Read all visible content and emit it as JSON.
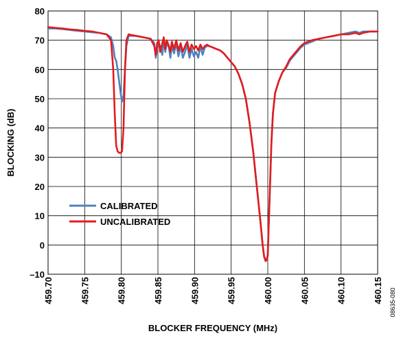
{
  "chart_data": {
    "type": "line",
    "title": "",
    "xlabel": "BLOCKER FREQUENCY (MHz)",
    "ylabel": "BLOCKING (dB)",
    "xlim": [
      459.7,
      460.15
    ],
    "ylim": [
      -10,
      80
    ],
    "x_ticks": [
      459.7,
      459.75,
      459.8,
      459.85,
      459.9,
      459.95,
      460.0,
      460.05,
      460.1,
      460.15
    ],
    "x_tick_labels": [
      "459.70",
      "459.75",
      "459.80",
      "459.85",
      "459.90",
      "459.95",
      "460.00",
      "460.05",
      "460.10",
      "460.15"
    ],
    "y_ticks": [
      -10,
      0,
      10,
      20,
      30,
      40,
      50,
      60,
      70,
      80
    ],
    "y_tick_labels": [
      "–10",
      "0",
      "10",
      "20",
      "30",
      "40",
      "50",
      "60",
      "70",
      "80"
    ],
    "grid": true,
    "legend_position": "lower-left",
    "figure_id": "08635-080",
    "series": [
      {
        "name": "CALIBRATED",
        "color": "#4f81bd",
        "x": [
          459.7,
          459.71,
          459.72,
          459.73,
          459.74,
          459.75,
          459.76,
          459.77,
          459.78,
          459.786,
          459.789,
          459.791,
          459.793,
          459.795,
          459.797,
          459.799,
          459.801,
          459.803,
          459.805,
          459.807,
          459.81,
          459.82,
          459.83,
          459.84,
          459.845,
          459.847,
          459.849,
          459.851,
          459.853,
          459.856,
          459.858,
          459.86,
          459.862,
          459.865,
          459.867,
          459.869,
          459.872,
          459.875,
          459.878,
          459.881,
          459.884,
          459.887,
          459.89,
          459.893,
          459.896,
          459.899,
          459.902,
          459.905,
          459.908,
          459.911,
          459.914,
          459.917,
          459.92,
          459.925,
          459.93,
          459.935,
          459.94,
          459.945,
          459.95,
          459.955,
          459.96,
          459.965,
          459.97,
          459.975,
          459.98,
          459.985,
          459.99,
          459.993,
          459.995,
          459.997,
          459.999,
          460.0,
          460.001,
          460.003,
          460.005,
          460.007,
          460.01,
          460.015,
          460.02,
          460.025,
          460.03,
          460.035,
          460.04,
          460.045,
          460.05,
          460.06,
          460.07,
          460.08,
          460.09,
          460.1,
          460.11,
          460.12,
          460.125,
          460.13,
          460.14,
          460.15
        ],
        "values": [
          74,
          74,
          73.8,
          73.5,
          73.2,
          73,
          72.7,
          72.5,
          72,
          71,
          68,
          64,
          63,
          60,
          56,
          52,
          49,
          51,
          60,
          68,
          71.5,
          71.5,
          71,
          70.5,
          69,
          64,
          67,
          69,
          68,
          65,
          70,
          66,
          69,
          67.5,
          64,
          68,
          65.5,
          69,
          64.5,
          68,
          64,
          66,
          68.5,
          64,
          67,
          64.5,
          66,
          64,
          68,
          65,
          67.5,
          68,
          68,
          67.5,
          67,
          66.5,
          65.5,
          64,
          62.5,
          61,
          58.5,
          55,
          50,
          42,
          32,
          20,
          8,
          0,
          -4,
          -5,
          -4.5,
          -3,
          5,
          20,
          35,
          45,
          52,
          56,
          59,
          60.5,
          63,
          64.5,
          66,
          67.5,
          68.5,
          69.5,
          70.5,
          71,
          71.5,
          72,
          72.5,
          73,
          72.5,
          73,
          73,
          73
        ]
      },
      {
        "name": "UNCALIBRATED",
        "color": "#e41a1c",
        "x": [
          459.7,
          459.71,
          459.72,
          459.73,
          459.74,
          459.75,
          459.76,
          459.77,
          459.78,
          459.786,
          459.789,
          459.791,
          459.793,
          459.795,
          459.797,
          459.799,
          459.801,
          459.803,
          459.805,
          459.807,
          459.81,
          459.82,
          459.83,
          459.84,
          459.845,
          459.847,
          459.849,
          459.851,
          459.853,
          459.856,
          459.858,
          459.86,
          459.862,
          459.865,
          459.867,
          459.869,
          459.872,
          459.875,
          459.878,
          459.881,
          459.884,
          459.887,
          459.89,
          459.893,
          459.896,
          459.899,
          459.902,
          459.905,
          459.908,
          459.911,
          459.914,
          459.917,
          459.92,
          459.925,
          459.93,
          459.935,
          459.94,
          459.945,
          459.95,
          459.955,
          459.96,
          459.965,
          459.97,
          459.975,
          459.98,
          459.985,
          459.99,
          459.993,
          459.995,
          459.997,
          459.999,
          460.0,
          460.001,
          460.003,
          460.005,
          460.007,
          460.01,
          460.015,
          460.02,
          460.025,
          460.03,
          460.035,
          460.04,
          460.045,
          460.05,
          460.06,
          460.07,
          460.08,
          460.09,
          460.1,
          460.11,
          460.12,
          460.125,
          460.13,
          460.14,
          460.15
        ],
        "values": [
          74.5,
          74.2,
          74,
          73.7,
          73.5,
          73.2,
          73,
          72.5,
          72,
          70,
          60,
          45,
          34,
          32,
          31.5,
          31.5,
          32,
          40,
          60,
          70,
          72,
          71.5,
          71,
          70.5,
          68,
          65,
          69,
          70,
          66,
          69,
          71,
          67,
          70,
          68,
          66,
          69.5,
          67,
          70,
          66.5,
          69,
          66,
          68,
          69.5,
          66,
          68.5,
          67,
          68,
          66.5,
          68.5,
          67,
          68,
          68.5,
          68,
          67.5,
          67,
          66.5,
          65.5,
          64,
          62.5,
          61,
          58.5,
          55,
          50,
          42,
          32,
          20,
          8,
          0,
          -4,
          -5.5,
          -5,
          -3.5,
          5,
          20,
          35,
          45,
          52,
          56,
          59,
          61,
          63.5,
          65,
          66.5,
          68,
          69,
          70,
          70.5,
          71,
          71.5,
          72,
          72,
          72.5,
          72,
          72.5,
          73,
          73
        ]
      }
    ]
  }
}
